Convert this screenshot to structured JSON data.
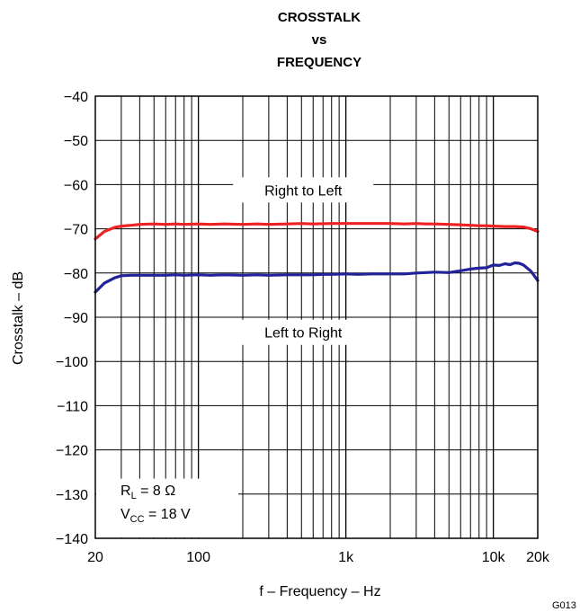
{
  "chart_data": {
    "type": "line",
    "title_lines": [
      "CROSSTALK",
      "vs",
      "FREQUENCY"
    ],
    "xlabel": "f – Frequency – Hz",
    "ylabel": "Crosstalk – dB",
    "x_scale": "log",
    "xlim": [
      20,
      20000
    ],
    "ylim": [
      -140,
      -40
    ],
    "x_ticks": [
      {
        "value": 20,
        "label": "20"
      },
      {
        "value": 100,
        "label": "100"
      },
      {
        "value": 1000,
        "label": "1k"
      },
      {
        "value": 10000,
        "label": "10k"
      },
      {
        "value": 20000,
        "label": "20k"
      }
    ],
    "y_ticks": [
      {
        "value": -40,
        "label": "−40"
      },
      {
        "value": -50,
        "label": "−50"
      },
      {
        "value": -60,
        "label": "−60"
      },
      {
        "value": -70,
        "label": "−70"
      },
      {
        "value": -80,
        "label": "−80"
      },
      {
        "value": -90,
        "label": "−90"
      },
      {
        "value": -100,
        "label": "−100"
      },
      {
        "value": -110,
        "label": "−110"
      },
      {
        "value": -120,
        "label": "−120"
      },
      {
        "value": -130,
        "label": "−130"
      },
      {
        "value": -140,
        "label": "−140"
      }
    ],
    "grid": true,
    "series": [
      {
        "name": "Right to Left",
        "color": "#ee2222",
        "x": [
          20,
          23,
          27,
          30,
          35,
          40,
          50,
          60,
          70,
          80,
          100,
          120,
          150,
          200,
          250,
          300,
          400,
          500,
          600,
          800,
          1000,
          1200,
          1500,
          2000,
          2500,
          3000,
          3500,
          4000,
          5000,
          6000,
          7000,
          8000,
          9000,
          10000,
          12000,
          14000,
          16000,
          18000,
          20000
        ],
        "y": [
          -72.3,
          -70.6,
          -69.7,
          -69.4,
          -69.2,
          -69.0,
          -68.9,
          -69.0,
          -68.9,
          -69.0,
          -68.9,
          -69.0,
          -68.9,
          -69.0,
          -68.9,
          -69.0,
          -68.9,
          -68.8,
          -68.9,
          -68.8,
          -68.8,
          -68.8,
          -68.8,
          -68.8,
          -68.9,
          -68.8,
          -68.9,
          -68.9,
          -69.0,
          -69.1,
          -69.2,
          -69.3,
          -69.3,
          -69.4,
          -69.5,
          -69.5,
          -69.6,
          -70.0,
          -70.6
        ]
      },
      {
        "name": "Left to Right",
        "color": "#22229a",
        "x": [
          20,
          23,
          27,
          30,
          35,
          40,
          50,
          60,
          70,
          80,
          100,
          120,
          150,
          200,
          250,
          300,
          400,
          500,
          600,
          700,
          800,
          1000,
          1200,
          1500,
          2000,
          2500,
          3000,
          3500,
          4000,
          5000,
          6000,
          7000,
          8000,
          9000,
          10000,
          11000,
          12000,
          13000,
          14000,
          15000,
          16000,
          18000,
          20000
        ],
        "y": [
          -84.3,
          -82.3,
          -81.1,
          -80.6,
          -80.5,
          -80.5,
          -80.5,
          -80.5,
          -80.4,
          -80.5,
          -80.4,
          -80.5,
          -80.4,
          -80.5,
          -80.4,
          -80.5,
          -80.4,
          -80.4,
          -80.4,
          -80.3,
          -80.3,
          -80.2,
          -80.3,
          -80.2,
          -80.2,
          -80.2,
          -80.0,
          -79.9,
          -79.8,
          -79.9,
          -79.5,
          -79.1,
          -78.9,
          -78.8,
          -78.2,
          -78.3,
          -77.9,
          -78.1,
          -77.7,
          -77.8,
          -78.2,
          -79.6,
          -81.7
        ]
      }
    ],
    "annotations": [
      {
        "text": "Right to Left"
      },
      {
        "text": "Left to Right"
      }
    ],
    "conditions": {
      "rl_prefix": "R",
      "rl_sub": "L",
      "rl_value": " = 8 Ω",
      "vcc_prefix": "V",
      "vcc_sub": "CC",
      "vcc_value": " = 18 V"
    },
    "figure_code": "G013"
  }
}
